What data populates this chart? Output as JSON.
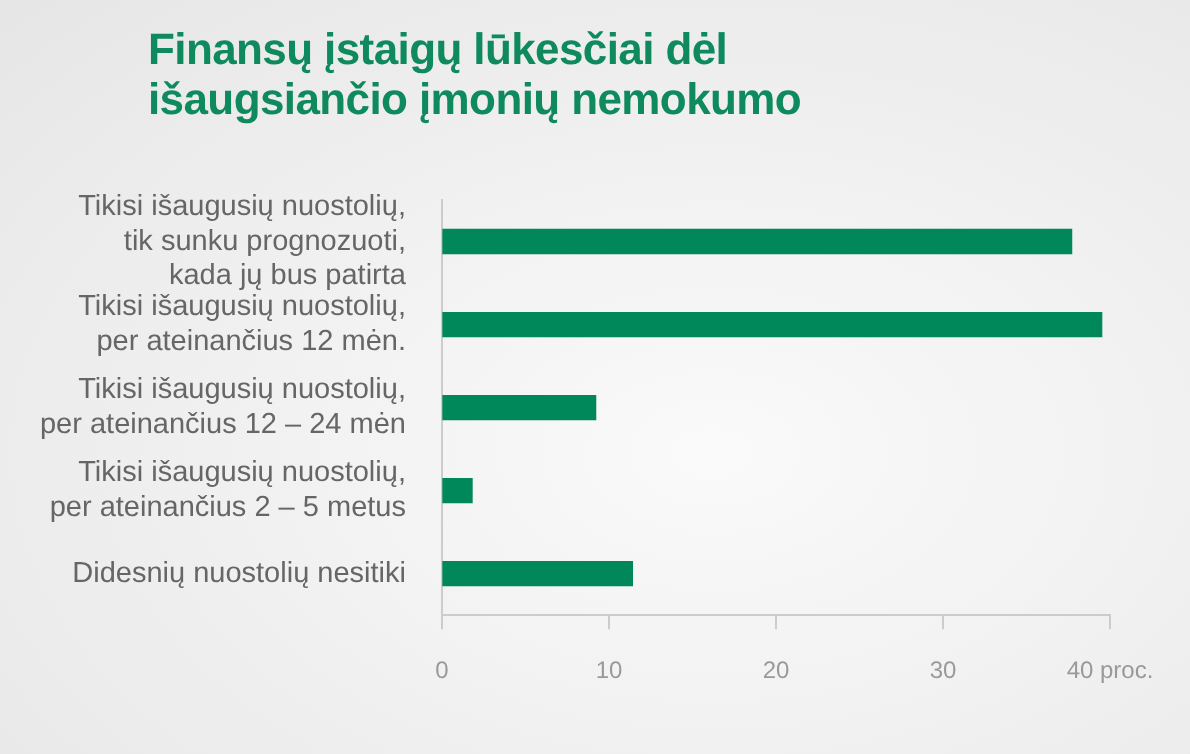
{
  "chart_data": {
    "type": "bar",
    "orientation": "horizontal",
    "title": "Finansų įstaigų lūkesčiai dėl\nišaugsiančio įmonių nemokumo",
    "categories": [
      "Tikisi išaugusių nuostolių,\ntik sunku prognozuoti,\nkada jų bus patirta",
      "Tikisi išaugusių nuostolių,\nper ateinančius 12 mėn.",
      "Tikisi išaugusių nuostolių,\nper ateinančius 12 – 24 mėn",
      "Tikisi išaugusių nuostolių,\nper ateinančius 2 – 5 metus",
      "Didesnių nuostolių nesitiki"
    ],
    "values": [
      37.7,
      39.5,
      9.2,
      1.8,
      11.4
    ],
    "color": "#00875a",
    "xlim": [
      0,
      40
    ],
    "xticks": [
      0,
      10,
      20,
      30,
      {
        "value": 40,
        "label": "40 proc."
      }
    ],
    "grid": false,
    "legend": false
  }
}
